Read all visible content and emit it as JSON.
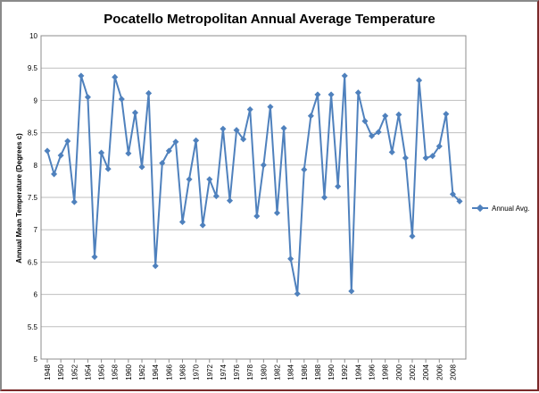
{
  "chart_data": {
    "type": "line",
    "title": "Pocatello Metropolitan Annual Average Temperature",
    "xlabel": "",
    "ylabel": "Annual Mean Temperature  (Degrees c)",
    "ylim": [
      5,
      10
    ],
    "yticks": [
      "5",
      "5.5",
      "6",
      "6.5",
      "7",
      "7.5",
      "8",
      "8.5",
      "9",
      "9.5",
      "10"
    ],
    "xticks": [
      "1948",
      "1950",
      "1952",
      "1954",
      "1956",
      "1958",
      "1960",
      "1962",
      "1964",
      "1966",
      "1968",
      "1970",
      "1972",
      "1974",
      "1976",
      "1978",
      "1980",
      "1982",
      "1984",
      "1986",
      "1988",
      "1990",
      "1992",
      "1994",
      "1996",
      "1998",
      "2000",
      "2002",
      "2004",
      "2006",
      "2008"
    ],
    "grid": true,
    "legend_position": "right",
    "series": [
      {
        "name": "Annual Avg.",
        "color": "#4f81bd",
        "x": [
          1948,
          1949,
          1950,
          1951,
          1952,
          1953,
          1954,
          1955,
          1956,
          1957,
          1958,
          1959,
          1960,
          1961,
          1962,
          1963,
          1964,
          1965,
          1966,
          1967,
          1968,
          1969,
          1970,
          1971,
          1972,
          1973,
          1974,
          1975,
          1976,
          1977,
          1978,
          1979,
          1980,
          1981,
          1982,
          1983,
          1984,
          1985,
          1986,
          1987,
          1988,
          1989,
          1990,
          1991,
          1992,
          1993,
          1994,
          1995,
          1996,
          1997,
          1998,
          1999,
          2000,
          2001,
          2002,
          2003,
          2004,
          2005,
          2006,
          2007,
          2008,
          2009
        ],
        "values": [
          8.22,
          7.86,
          8.15,
          8.37,
          7.43,
          9.38,
          9.05,
          6.58,
          8.19,
          7.94,
          9.36,
          9.02,
          8.18,
          8.81,
          7.97,
          9.11,
          6.44,
          8.03,
          8.22,
          8.36,
          7.12,
          7.78,
          8.38,
          7.07,
          7.78,
          7.52,
          8.56,
          7.45,
          8.54,
          8.4,
          8.86,
          7.21,
          8.0,
          8.9,
          7.26,
          8.57,
          6.55,
          6.01,
          7.93,
          8.76,
          9.09,
          7.5,
          9.09,
          7.67,
          9.38,
          6.05,
          9.12,
          8.68,
          8.45,
          8.51,
          8.76,
          8.2,
          8.78,
          8.11,
          6.9,
          9.31,
          8.11,
          8.14,
          8.29,
          8.79,
          7.55,
          7.44
        ]
      }
    ]
  }
}
